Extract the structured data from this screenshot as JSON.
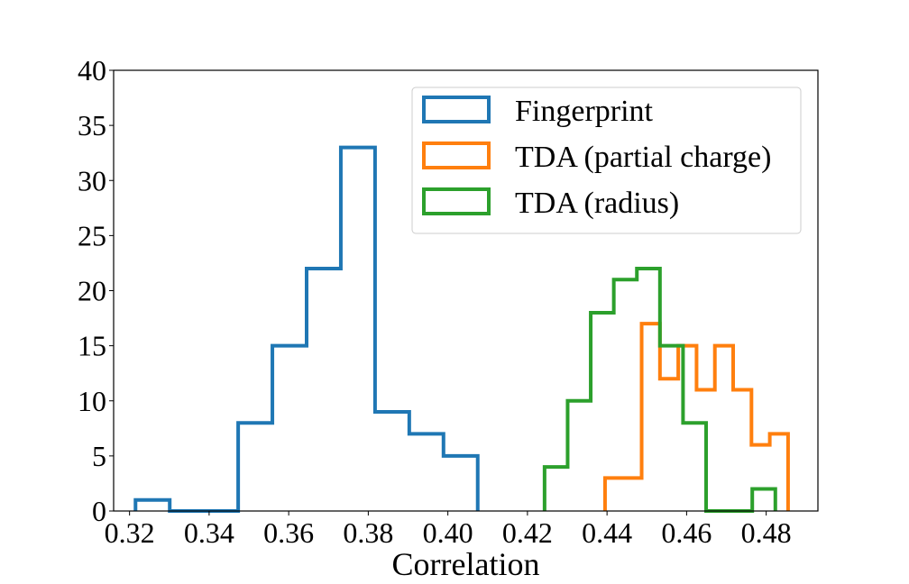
{
  "chart_data": {
    "type": "histogram",
    "title": "",
    "xlabel": "Correlation",
    "ylabel": "",
    "xlim": [
      0.316,
      0.493
    ],
    "ylim": [
      0,
      40
    ],
    "x_ticks": [
      0.32,
      0.34,
      0.36,
      0.38,
      0.4,
      0.42,
      0.44,
      0.46,
      0.48
    ],
    "x_tick_labels": [
      "0.32",
      "0.34",
      "0.36",
      "0.38",
      "0.40",
      "0.42",
      "0.44",
      "0.46",
      "0.48"
    ],
    "y_ticks": [
      0,
      5,
      10,
      15,
      20,
      25,
      30,
      35,
      40
    ],
    "y_tick_labels": [
      "0",
      "5",
      "10",
      "15",
      "20",
      "25",
      "30",
      "35",
      "40"
    ],
    "grid": false,
    "legend_position": "top-right",
    "series": [
      {
        "name": "Fingerprint",
        "color": "#1f77b4",
        "bin_edges": [
          0.3215,
          0.3301,
          0.3387,
          0.3473,
          0.3559,
          0.3645,
          0.3731,
          0.3817,
          0.3903,
          0.3989,
          0.4075
        ],
        "counts": [
          1,
          0,
          0,
          8,
          15,
          22,
          33,
          9,
          7,
          5
        ]
      },
      {
        "name": "TDA (partial charge)",
        "color": "#ff7f0e",
        "bin_edges": [
          0.4395,
          0.4441,
          0.4487,
          0.4533,
          0.4579,
          0.4625,
          0.4671,
          0.4717,
          0.4763,
          0.4809,
          0.4855
        ],
        "counts": [
          3,
          3,
          17,
          12,
          15,
          11,
          15,
          11,
          6,
          7
        ]
      },
      {
        "name": "TDA (radius)",
        "color": "#2ca02c",
        "bin_edges": [
          0.4243,
          0.4301,
          0.4359,
          0.4417,
          0.4475,
          0.4533,
          0.4591,
          0.4649,
          0.4707,
          0.4765,
          0.4823
        ],
        "counts": [
          4,
          10,
          18,
          21,
          22,
          15,
          8,
          0,
          0,
          2
        ]
      }
    ]
  }
}
